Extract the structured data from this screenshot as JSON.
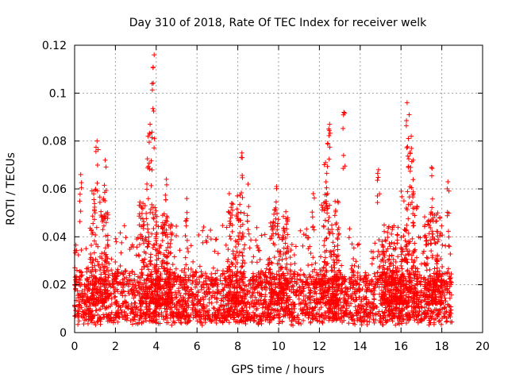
{
  "chart_data": {
    "type": "scatter",
    "title": "Day 310 of 2018, Rate Of TEC Index for receiver welk",
    "xlabel": "GPS time / hours",
    "ylabel": "ROTI / TECUs",
    "xlim": [
      0,
      20
    ],
    "ylim": [
      0,
      0.12
    ],
    "x_ticks": [
      "0",
      "2",
      "4",
      "6",
      "8",
      "10",
      "12",
      "14",
      "16",
      "18",
      "20"
    ],
    "y_ticks": [
      "0",
      "0.02",
      "0.04",
      "0.06",
      "0.08",
      "0.1",
      "0.12"
    ],
    "grid": true,
    "marker": "+",
    "color": "#ff0000",
    "x_range_observed": [
      0,
      18.5
    ],
    "baseline_band": [
      0.005,
      0.025
    ],
    "spikes": [
      {
        "x": 0.3,
        "y": 0.066
      },
      {
        "x": 1.1,
        "y": 0.08
      },
      {
        "x": 1.5,
        "y": 0.072
      },
      {
        "x": 3.6,
        "y": 0.082
      },
      {
        "x": 3.7,
        "y": 0.087
      },
      {
        "x": 3.8,
        "y": 0.104
      },
      {
        "x": 3.9,
        "y": 0.116
      },
      {
        "x": 4.5,
        "y": 0.064
      },
      {
        "x": 5.5,
        "y": 0.056
      },
      {
        "x": 7.7,
        "y": 0.054
      },
      {
        "x": 8.2,
        "y": 0.075
      },
      {
        "x": 8.5,
        "y": 0.062
      },
      {
        "x": 9.9,
        "y": 0.061
      },
      {
        "x": 11.7,
        "y": 0.058
      },
      {
        "x": 12.3,
        "y": 0.071
      },
      {
        "x": 12.4,
        "y": 0.079
      },
      {
        "x": 12.5,
        "y": 0.087
      },
      {
        "x": 13.2,
        "y": 0.092
      },
      {
        "x": 14.9,
        "y": 0.068
      },
      {
        "x": 16.3,
        "y": 0.096
      },
      {
        "x": 16.4,
        "y": 0.091
      },
      {
        "x": 16.5,
        "y": 0.082
      },
      {
        "x": 16.6,
        "y": 0.072
      },
      {
        "x": 17.5,
        "y": 0.069
      },
      {
        "x": 18.3,
        "y": 0.063
      }
    ],
    "activity_peaks": [
      {
        "x": 1.2,
        "y": 0.06
      },
      {
        "x": 3.6,
        "y": 0.055
      },
      {
        "x": 4.4,
        "y": 0.05
      },
      {
        "x": 7.9,
        "y": 0.058
      },
      {
        "x": 10.0,
        "y": 0.052
      },
      {
        "x": 12.5,
        "y": 0.055
      },
      {
        "x": 15.5,
        "y": 0.045
      },
      {
        "x": 16.4,
        "y": 0.06
      },
      {
        "x": 17.6,
        "y": 0.05
      }
    ]
  }
}
